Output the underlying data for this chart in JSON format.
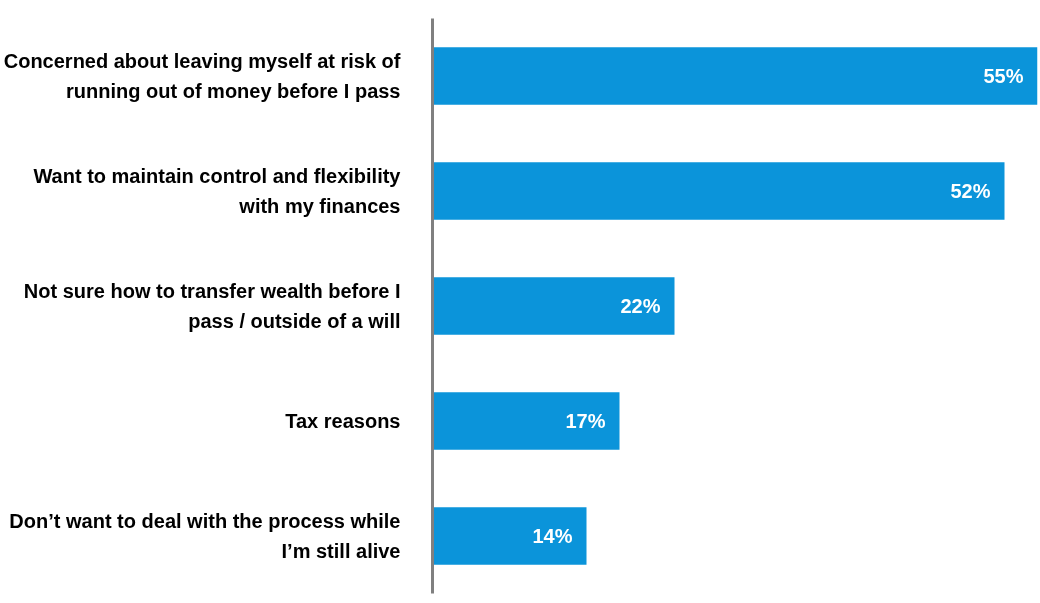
{
  "chart_data": {
    "type": "bar",
    "orientation": "horizontal",
    "categories": [
      "Concerned about leaving myself at risk of running out of money before I pass",
      "Want to maintain control and flexibility with my finances",
      "Not sure how to transfer wealth before I pass / outside of a will",
      "Tax reasons",
      "Don’t want to deal with the process while I’m still alive"
    ],
    "values": [
      55,
      52,
      22,
      17,
      14
    ],
    "value_labels": [
      "55%",
      "52%",
      "22%",
      "17%",
      "14%"
    ],
    "color": "#0b94da",
    "grid": false,
    "tick_labels": "y"
  }
}
